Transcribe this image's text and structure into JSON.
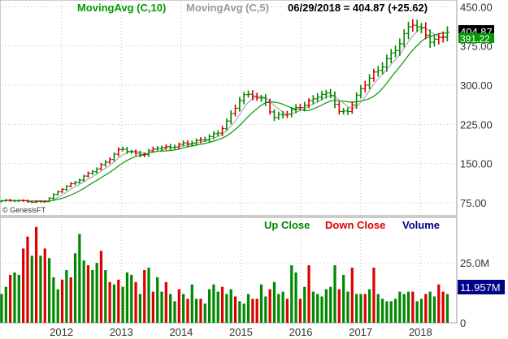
{
  "header": {
    "ma10_label": "MovingAvg (C,10)",
    "ma5_label": "MovingAvg (C,5)",
    "date_close": "06/29/2018 = 404.87 (+25.62)"
  },
  "credit": "© GenesisFT",
  "legend": {
    "up": "Up Close",
    "down": "Down Close",
    "volume": "Volume"
  },
  "price_badges": {
    "close": "404.87",
    "ma10": "391.22"
  },
  "volume_badge": "11.957M",
  "colors": {
    "up": "#008800",
    "down": "#dd0000",
    "ma10": "#009900",
    "ma5": "#9a9a9a",
    "volume_label": "#000088",
    "grid": "#c0c0c0"
  },
  "chart_data": [
    {
      "type": "line",
      "title": "",
      "ma_series_names": [
        "MovingAvg (C,10)",
        "MovingAvg (C,5)"
      ],
      "price_axis_ticks": [
        "450.00",
        "375.00",
        "300.00",
        "225.00",
        "150.00",
        "75.00"
      ],
      "price_tick_values": [
        450,
        375,
        300,
        225,
        150,
        75
      ],
      "ylim": [
        50,
        460
      ],
      "x_tick_labels": [
        "2012",
        "2013",
        "2014",
        "2015",
        "2016",
        "2017",
        "2018"
      ],
      "x_tick_positions": [
        2012.0,
        2013.0,
        2014.0,
        2015.0,
        2016.0,
        2017.0,
        2018.0
      ],
      "xlim": [
        2011.0,
        2018.58
      ],
      "anchors": [
        [
          2011.0,
          78
        ],
        [
          2011.25,
          80
        ],
        [
          2011.5,
          76
        ],
        [
          2011.7,
          77
        ],
        [
          2012.0,
          100
        ],
        [
          2012.3,
          120
        ],
        [
          2012.6,
          140
        ],
        [
          2012.85,
          165
        ],
        [
          2013.0,
          178
        ],
        [
          2013.2,
          170
        ],
        [
          2013.4,
          168
        ],
        [
          2013.6,
          180
        ],
        [
          2014.0,
          185
        ],
        [
          2014.3,
          195
        ],
        [
          2014.6,
          205
        ],
        [
          2014.75,
          230
        ],
        [
          2015.0,
          275
        ],
        [
          2015.2,
          283
        ],
        [
          2015.4,
          270
        ],
        [
          2015.55,
          235
        ],
        [
          2015.7,
          245
        ],
        [
          2015.9,
          255
        ],
        [
          2016.1,
          262
        ],
        [
          2016.3,
          285
        ],
        [
          2016.5,
          280
        ],
        [
          2016.65,
          245
        ],
        [
          2016.8,
          255
        ],
        [
          2017.0,
          290
        ],
        [
          2017.2,
          320
        ],
        [
          2017.4,
          345
        ],
        [
          2017.55,
          360
        ],
        [
          2017.7,
          390
        ],
        [
          2017.85,
          425
        ],
        [
          2018.0,
          405
        ],
        [
          2018.15,
          385
        ],
        [
          2018.3,
          390
        ],
        [
          2018.45,
          405
        ]
      ]
    },
    {
      "type": "bar",
      "title": "",
      "volume_axis_ticks": [
        "25.0M",
        "0"
      ],
      "volume_tick_values": [
        25,
        0
      ],
      "ylim": [
        0,
        44
      ],
      "volume_m": [
        12,
        15,
        20,
        21,
        20,
        31,
        36,
        28,
        40,
        28,
        31,
        27,
        19,
        14,
        18,
        22,
        19,
        29,
        37,
        26,
        24,
        22,
        25,
        30,
        22,
        17,
        16,
        18,
        15,
        21,
        20,
        17,
        12,
        22,
        23,
        13,
        19,
        13,
        17,
        12,
        9,
        14,
        12,
        10,
        16,
        10,
        10,
        8,
        14,
        16,
        13,
        15,
        12,
        14,
        11,
        9,
        8,
        12,
        10,
        10,
        16,
        11,
        14,
        17,
        12,
        13,
        10,
        24,
        21,
        10,
        15,
        24,
        13,
        12,
        11,
        14,
        15,
        24,
        14,
        20,
        13,
        23,
        12,
        12,
        12,
        14,
        23,
        12,
        10,
        9,
        9,
        10,
        13,
        12,
        13,
        13,
        9,
        10,
        12,
        13,
        11,
        16,
        13,
        12
      ],
      "up": [
        true,
        true,
        false,
        true,
        true,
        false,
        false,
        true,
        false,
        true,
        false,
        true,
        true,
        true,
        false,
        true,
        false,
        true,
        true,
        true,
        false,
        true,
        true,
        false,
        true,
        false,
        true,
        false,
        true,
        true,
        true,
        false,
        true,
        false,
        true,
        false,
        true,
        true,
        false,
        true,
        true,
        false,
        true,
        false,
        true,
        true,
        false,
        true,
        true,
        true,
        true,
        false,
        true,
        true,
        false,
        true,
        true,
        true,
        false,
        false,
        true,
        true,
        false,
        true,
        true,
        true,
        false,
        true,
        true,
        false,
        true,
        false,
        true,
        true,
        true,
        true,
        true,
        true,
        false,
        true,
        true,
        false,
        true,
        true,
        false,
        true,
        false,
        true,
        true,
        true,
        true,
        true,
        true,
        true,
        true,
        false,
        true,
        true,
        false,
        true,
        true,
        false,
        false,
        true
      ]
    }
  ]
}
